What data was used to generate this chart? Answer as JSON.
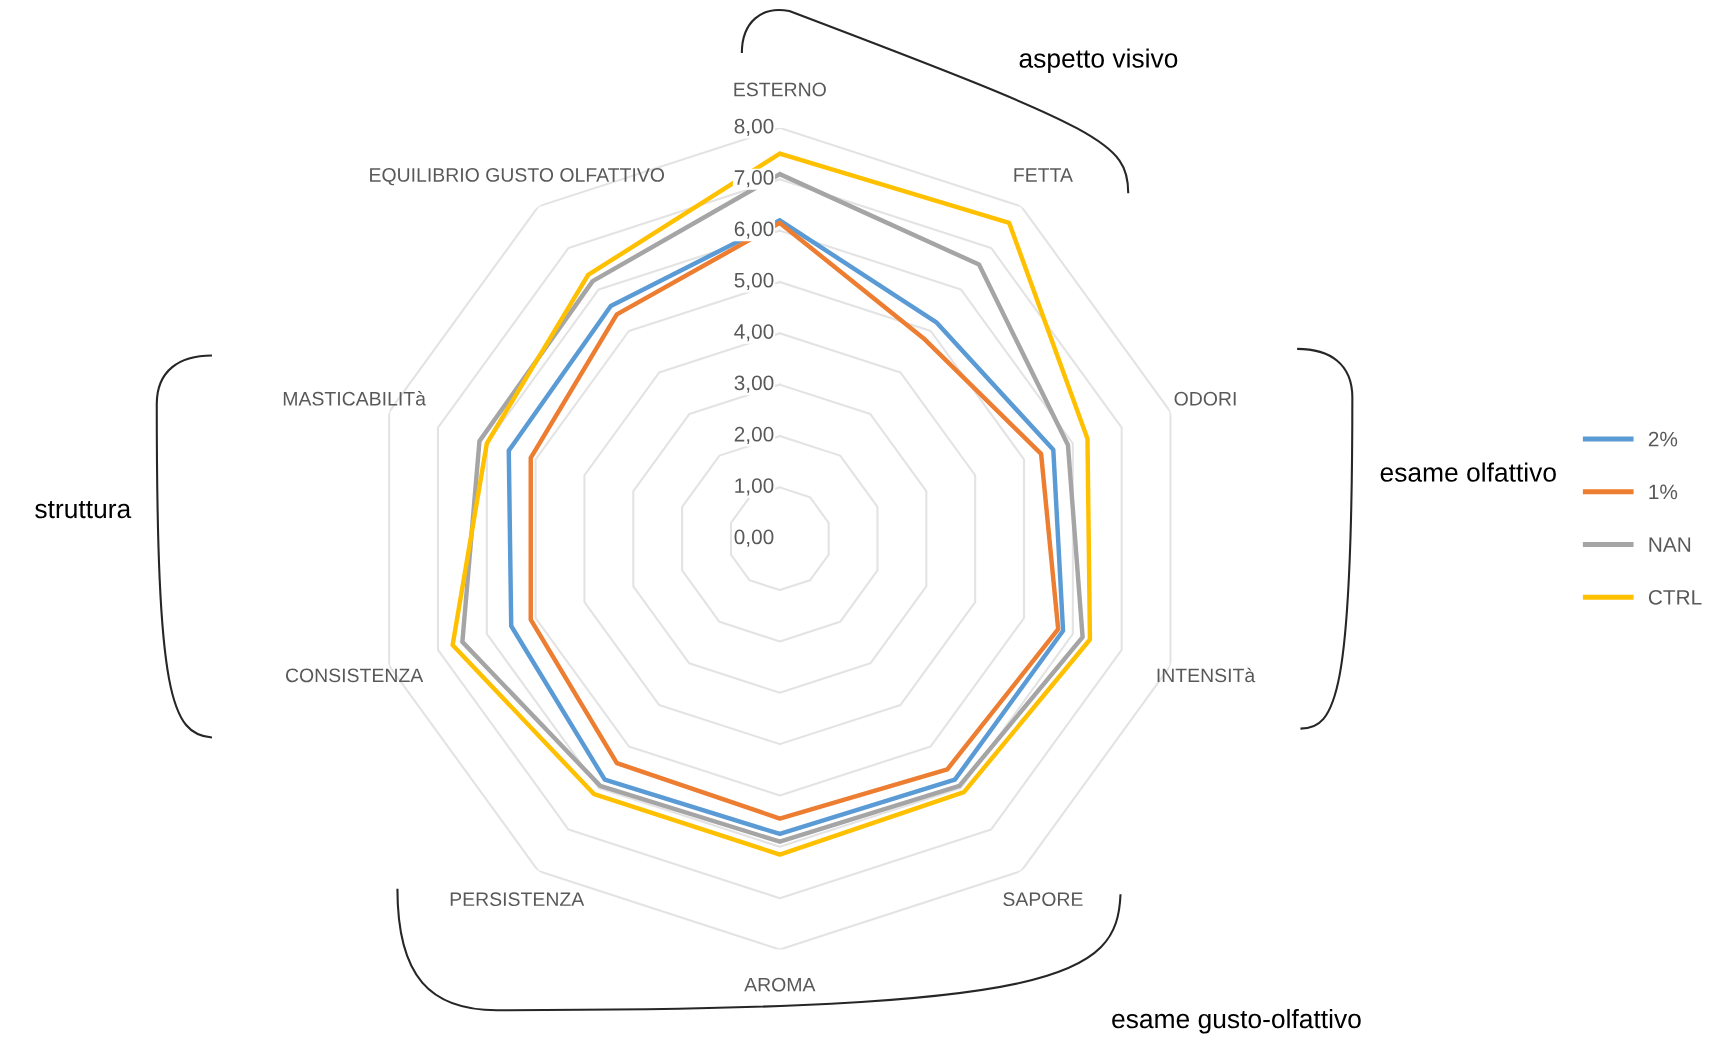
{
  "chart_data": {
    "type": "radar",
    "categories": [
      "ESTERNO",
      "FETTA",
      "ODORI",
      "INTENSITà",
      "SAPORE",
      "AROMA",
      "PERSISTENZA",
      "CONSISTENZA",
      "MASTICABILITà",
      "EQUILIBRIO GUSTO OLFATTIVO"
    ],
    "series": [
      {
        "name": "2%",
        "color": "#5b9bd5",
        "values": [
          6.2,
          5.2,
          5.6,
          5.8,
          5.8,
          5.75,
          5.8,
          5.5,
          5.55,
          5.6
        ]
      },
      {
        "name": "1%",
        "color": "#ed7d31",
        "values": [
          6.15,
          4.8,
          5.35,
          5.7,
          5.55,
          5.45,
          5.4,
          5.1,
          5.1,
          5.4
        ]
      },
      {
        "name": "NAN",
        "color": "#a5a5a5",
        "values": [
          7.1,
          6.6,
          5.9,
          6.2,
          5.95,
          5.9,
          5.95,
          6.5,
          6.15,
          6.2
        ]
      },
      {
        "name": "CTRL",
        "color": "#ffc000",
        "values": [
          7.5,
          7.6,
          6.3,
          6.35,
          6.1,
          6.15,
          6.15,
          6.7,
          6.0,
          6.35
        ]
      }
    ],
    "ylim": [
      0,
      8
    ],
    "yticks": [
      {
        "value": 0,
        "label": "0,00"
      },
      {
        "value": 1,
        "label": "1,00"
      },
      {
        "value": 2,
        "label": "2,00"
      },
      {
        "value": 3,
        "label": "3,00"
      },
      {
        "value": 4,
        "label": "4,00"
      },
      {
        "value": 5,
        "label": "5,00"
      },
      {
        "value": 6,
        "label": "6,00"
      },
      {
        "value": 7,
        "label": "7,00"
      },
      {
        "value": 8,
        "label": "8,00"
      }
    ],
    "grid": true,
    "legend": "right",
    "annotations": [
      "aspetto visivo",
      "esame olfattivo",
      "esame gusto-olfattivo",
      "struttura"
    ]
  }
}
